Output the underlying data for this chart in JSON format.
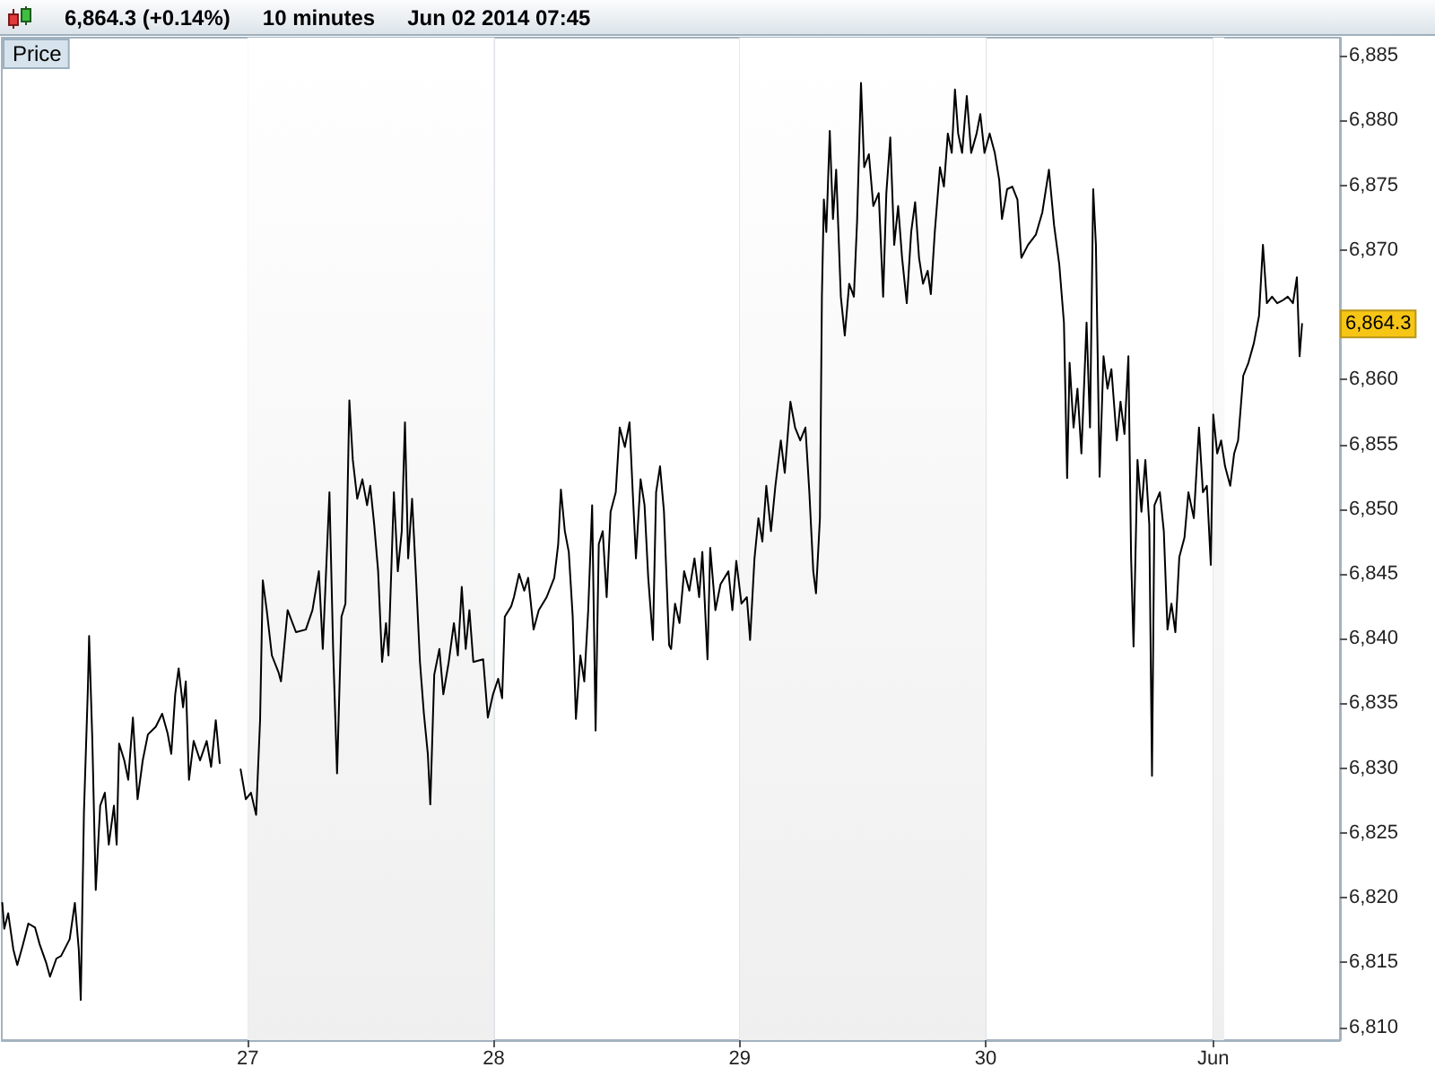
{
  "chart_data": {
    "type": "line",
    "title": "6,864.3 (+0.14%)",
    "subtitle": "10 minutes",
    "annotations": [
      "Jun 02 2014 07:45",
      {
        "text": "6,864.3",
        "y": 6864.3
      }
    ],
    "x": [
      26.002,
      26.01,
      26.026,
      26.047,
      26.063,
      26.085,
      26.108,
      26.135,
      26.154,
      26.18,
      26.196,
      26.222,
      26.241,
      26.276,
      26.297,
      26.313,
      26.321,
      26.334,
      26.35,
      26.355,
      26.368,
      26.382,
      26.4,
      26.419,
      26.435,
      26.456,
      26.467,
      26.477,
      26.498,
      26.514,
      26.533,
      26.552,
      26.573,
      26.594,
      26.626,
      26.652,
      26.674,
      26.689,
      26.705,
      26.719,
      26.737,
      26.748,
      26.761,
      26.78,
      26.806,
      26.833,
      26.851,
      26.87,
      26.886,
      26.93,
      26.971,
      26.992,
      27.013,
      27.034,
      27.05,
      27.061,
      27.077,
      27.098,
      27.125,
      27.135,
      27.162,
      27.196,
      27.236,
      27.263,
      27.289,
      27.305,
      27.332,
      27.347,
      27.363,
      27.381,
      27.397,
      27.413,
      27.427,
      27.445,
      27.466,
      27.485,
      27.498,
      27.514,
      27.53,
      27.546,
      27.562,
      27.572,
      27.594,
      27.61,
      27.626,
      27.639,
      27.652,
      27.668,
      27.684,
      27.7,
      27.716,
      27.732,
      27.742,
      27.758,
      27.779,
      27.795,
      27.817,
      27.838,
      27.854,
      27.87,
      27.886,
      27.901,
      27.917,
      27.957,
      27.976,
      27.997,
      28.018,
      28.034,
      28.045,
      28.071,
      28.082,
      28.103,
      28.124,
      28.14,
      28.162,
      28.183,
      28.215,
      28.246,
      28.262,
      28.273,
      28.289,
      28.305,
      28.321,
      28.334,
      28.352,
      28.368,
      28.384,
      28.4,
      28.414,
      28.427,
      28.443,
      28.459,
      28.475,
      28.496,
      28.512,
      28.533,
      28.552,
      28.565,
      28.578,
      28.597,
      28.613,
      28.628,
      28.647,
      28.66,
      28.676,
      28.692,
      28.713,
      28.721,
      28.737,
      28.755,
      28.774,
      28.795,
      28.816,
      28.835,
      28.848,
      28.869,
      28.88,
      28.901,
      28.922,
      28.954,
      28.97,
      28.986,
      29.007,
      29.029,
      29.042,
      29.06,
      29.076,
      29.092,
      29.108,
      29.127,
      29.145,
      29.167,
      29.183,
      29.206,
      29.225,
      29.246,
      29.267,
      29.283,
      29.299,
      29.31,
      29.326,
      29.334,
      29.342,
      29.352,
      29.366,
      29.379,
      29.392,
      29.411,
      29.427,
      29.445,
      29.464,
      29.477,
      29.493,
      29.506,
      29.525,
      29.543,
      29.565,
      29.583,
      29.596,
      29.612,
      29.628,
      29.644,
      29.66,
      29.679,
      29.697,
      29.713,
      29.729,
      29.745,
      29.764,
      29.777,
      29.793,
      29.814,
      29.83,
      29.846,
      29.862,
      29.875,
      29.888,
      29.904,
      29.923,
      29.941,
      29.963,
      29.978,
      29.995,
      30.016,
      30.037,
      30.055,
      30.066,
      30.087,
      30.108,
      30.129,
      30.145,
      30.172,
      30.204,
      30.23,
      30.257,
      30.278,
      30.299,
      30.318,
      30.331,
      30.341,
      30.357,
      30.373,
      30.389,
      30.41,
      30.424,
      30.437,
      30.448,
      30.463,
      30.479,
      30.495,
      30.511,
      30.533,
      30.548,
      30.564,
      30.58,
      30.591,
      30.601,
      30.617,
      30.633,
      30.649,
      30.665,
      30.676,
      30.686,
      30.708,
      30.724,
      30.739,
      30.755,
      30.771,
      30.787,
      30.808,
      30.824,
      30.846,
      30.867,
      30.883,
      30.899,
      30.915,
      30.925,
      30.941,
      30.957,
      30.973,
      30.994,
      31.01,
      31.026,
      31.047,
      31.068,
      31.09,
      31.111,
      31.127,
      31.143,
      31.164,
      31.185,
      31.206,
      31.228,
      31.249,
      31.265,
      31.276,
      31.286
    ],
    "series": [
      {
        "name": "Price",
        "color": "#000000",
        "values": [
          6819.6,
          6817.6,
          6818.8,
          6816.0,
          6814.8,
          6816.3,
          6818.0,
          6817.7,
          6816.4,
          6815.0,
          6813.9,
          6815.3,
          6815.5,
          6816.8,
          6819.6,
          6816.0,
          6812.1,
          6826.6,
          6836.2,
          6840.2,
          6832.2,
          6820.6,
          6827.1,
          6828.1,
          6824.1,
          6827.1,
          6824.1,
          6831.9,
          6830.6,
          6829.1,
          6833.9,
          6827.6,
          6830.6,
          6832.6,
          6833.2,
          6834.2,
          6832.7,
          6831.1,
          6835.7,
          6837.7,
          6834.7,
          6836.7,
          6829.1,
          6832.1,
          6830.6,
          6832.1,
          6830.1,
          6833.7,
          6830.4,
          null,
          6829.9,
          6827.6,
          6828.1,
          6826.4,
          6833.7,
          6844.5,
          6842.2,
          6838.7,
          6837.4,
          6836.7,
          6842.2,
          6840.5,
          6840.7,
          6842.2,
          6845.2,
          6839.2,
          6851.3,
          6839.2,
          6829.6,
          6841.7,
          6842.7,
          6858.4,
          6853.8,
          6850.8,
          6852.3,
          6850.3,
          6851.8,
          6848.8,
          6845.2,
          6838.2,
          6841.2,
          6838.7,
          6851.3,
          6845.2,
          6848.3,
          6856.7,
          6846.2,
          6850.8,
          6844.7,
          6838.2,
          6834.2,
          6831.1,
          6827.2,
          6837.2,
          6839.2,
          6835.7,
          6838.2,
          6841.2,
          6838.7,
          6844.0,
          6839.2,
          6842.2,
          6838.2,
          6838.4,
          6833.9,
          6835.7,
          6836.9,
          6835.4,
          6841.7,
          6842.5,
          6843.2,
          6845.0,
          6843.7,
          6844.7,
          6840.7,
          6842.2,
          6843.2,
          6844.7,
          6847.3,
          6851.5,
          6848.3,
          6846.7,
          6841.7,
          6833.8,
          6838.7,
          6836.7,
          6842.2,
          6850.3,
          6832.9,
          6847.3,
          6848.3,
          6843.2,
          6849.8,
          6851.3,
          6856.3,
          6854.8,
          6856.7,
          6851.3,
          6846.2,
          6852.3,
          6850.3,
          6844.7,
          6839.9,
          6851.3,
          6853.3,
          6849.8,
          6839.5,
          6839.2,
          6842.7,
          6841.2,
          6845.2,
          6843.7,
          6846.2,
          6843.2,
          6846.7,
          6838.4,
          6847.0,
          6842.2,
          6844.2,
          6845.2,
          6842.2,
          6846.0,
          6842.7,
          6843.2,
          6839.9,
          6846.2,
          6849.3,
          6847.5,
          6851.8,
          6848.3,
          6851.8,
          6855.3,
          6852.8,
          6858.3,
          6856.3,
          6855.3,
          6856.3,
          6851.3,
          6845.2,
          6843.5,
          6849.3,
          6866.4,
          6873.9,
          6871.4,
          6879.2,
          6872.4,
          6876.2,
          6866.4,
          6863.4,
          6867.4,
          6866.4,
          6872.2,
          6882.9,
          6876.4,
          6877.4,
          6873.4,
          6874.4,
          6866.4,
          6874.4,
          6878.7,
          6870.4,
          6873.4,
          6869.4,
          6865.9,
          6871.4,
          6873.7,
          6869.4,
          6867.4,
          6868.4,
          6866.6,
          6871.4,
          6876.4,
          6874.9,
          6879.0,
          6877.5,
          6882.4,
          6879.0,
          6877.5,
          6881.9,
          6877.5,
          6879.0,
          6880.5,
          6877.5,
          6879.0,
          6877.5,
          6875.4,
          6872.4,
          6874.7,
          6874.9,
          6873.9,
          6869.4,
          6870.4,
          6871.2,
          6872.9,
          6876.2,
          6871.9,
          6868.9,
          6864.4,
          6852.4,
          6861.3,
          6856.3,
          6859.3,
          6854.3,
          6864.4,
          6856.3,
          6874.7,
          6870.4,
          6852.5,
          6861.8,
          6859.3,
          6860.8,
          6855.3,
          6858.3,
          6855.8,
          6861.8,
          6846.3,
          6839.4,
          6853.8,
          6849.8,
          6853.8,
          6848.8,
          6829.4,
          6850.3,
          6851.3,
          6848.3,
          6840.7,
          6842.7,
          6840.5,
          6846.3,
          6847.8,
          6851.3,
          6849.3,
          6856.3,
          6851.3,
          6851.8,
          6845.7,
          6857.3,
          6854.3,
          6855.3,
          6853.3,
          6851.8,
          6854.3,
          6855.3,
          6860.3,
          6861.3,
          6862.8,
          6864.9,
          6870.4,
          6865.9,
          6866.4,
          6865.9,
          6866.1,
          6866.4,
          6865.9,
          6867.9,
          6861.8,
          6864.3
        ]
      }
    ],
    "xlim": [
      26,
      31.44
    ],
    "xticks": [
      27,
      28,
      29,
      30,
      {
        "value": 30.925,
        "label": "Jun"
      }
    ],
    "ylim": [
      6809,
      6886.4
    ],
    "yticks": [
      {
        "value": 6810,
        "label": "6,810"
      },
      {
        "value": 6815,
        "label": "6,815"
      },
      {
        "value": 6820,
        "label": "6,820"
      },
      {
        "value": 6825,
        "label": "6,825"
      },
      {
        "value": 6830,
        "label": "6,830"
      },
      {
        "value": 6835,
        "label": "6,835"
      },
      {
        "value": 6840,
        "label": "6,840"
      },
      {
        "value": 6845,
        "label": "6,845"
      },
      {
        "value": 6850,
        "label": "6,850"
      },
      {
        "value": 6855,
        "label": "6,855"
      },
      {
        "value": 6860,
        "label": "6,860"
      },
      {
        "value": 6865,
        "label": null
      },
      {
        "value": 6870,
        "label": "6,870"
      },
      {
        "value": 6875,
        "label": "6,875"
      },
      {
        "value": 6880,
        "label": "6,880"
      },
      {
        "value": 6885,
        "label": "6,885"
      }
    ],
    "bands": [
      {
        "axis": "x",
        "from": 27,
        "to": 28,
        "color": "#efefef"
      },
      {
        "axis": "x",
        "from": 29,
        "to": 30,
        "color": "#efefef"
      },
      {
        "axis": "x",
        "from": 30.925,
        "to": 30.97,
        "color": "#efefef"
      }
    ],
    "grid": "x",
    "legend": "top left",
    "marker": "none",
    "line_style": "solid"
  }
}
